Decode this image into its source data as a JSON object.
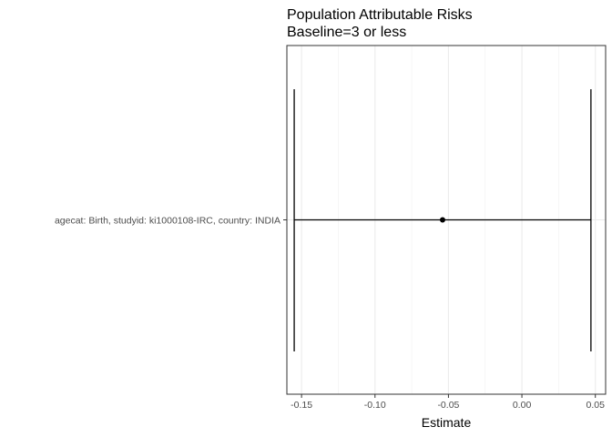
{
  "chart_data": {
    "type": "errorbar",
    "title": "Population Attributable Risks",
    "subtitle": "Baseline=3 or less",
    "xlabel": "Estimate",
    "ylabel": "",
    "xlim": [
      -0.16,
      0.057
    ],
    "x_ticks": [
      -0.15,
      -0.1,
      -0.05,
      0.0,
      0.05
    ],
    "x_tick_labels": [
      "-0.15",
      "-0.10",
      "-0.05",
      "0.00",
      "0.05"
    ],
    "grid": true,
    "categories": [
      "agecat: Birth, studyid: ki1000108-IRC, country: INDIA"
    ],
    "points": [
      {
        "category": "agecat: Birth, studyid: ki1000108-IRC, country: INDIA",
        "estimate": -0.054,
        "lower": -0.155,
        "upper": 0.047
      }
    ]
  }
}
